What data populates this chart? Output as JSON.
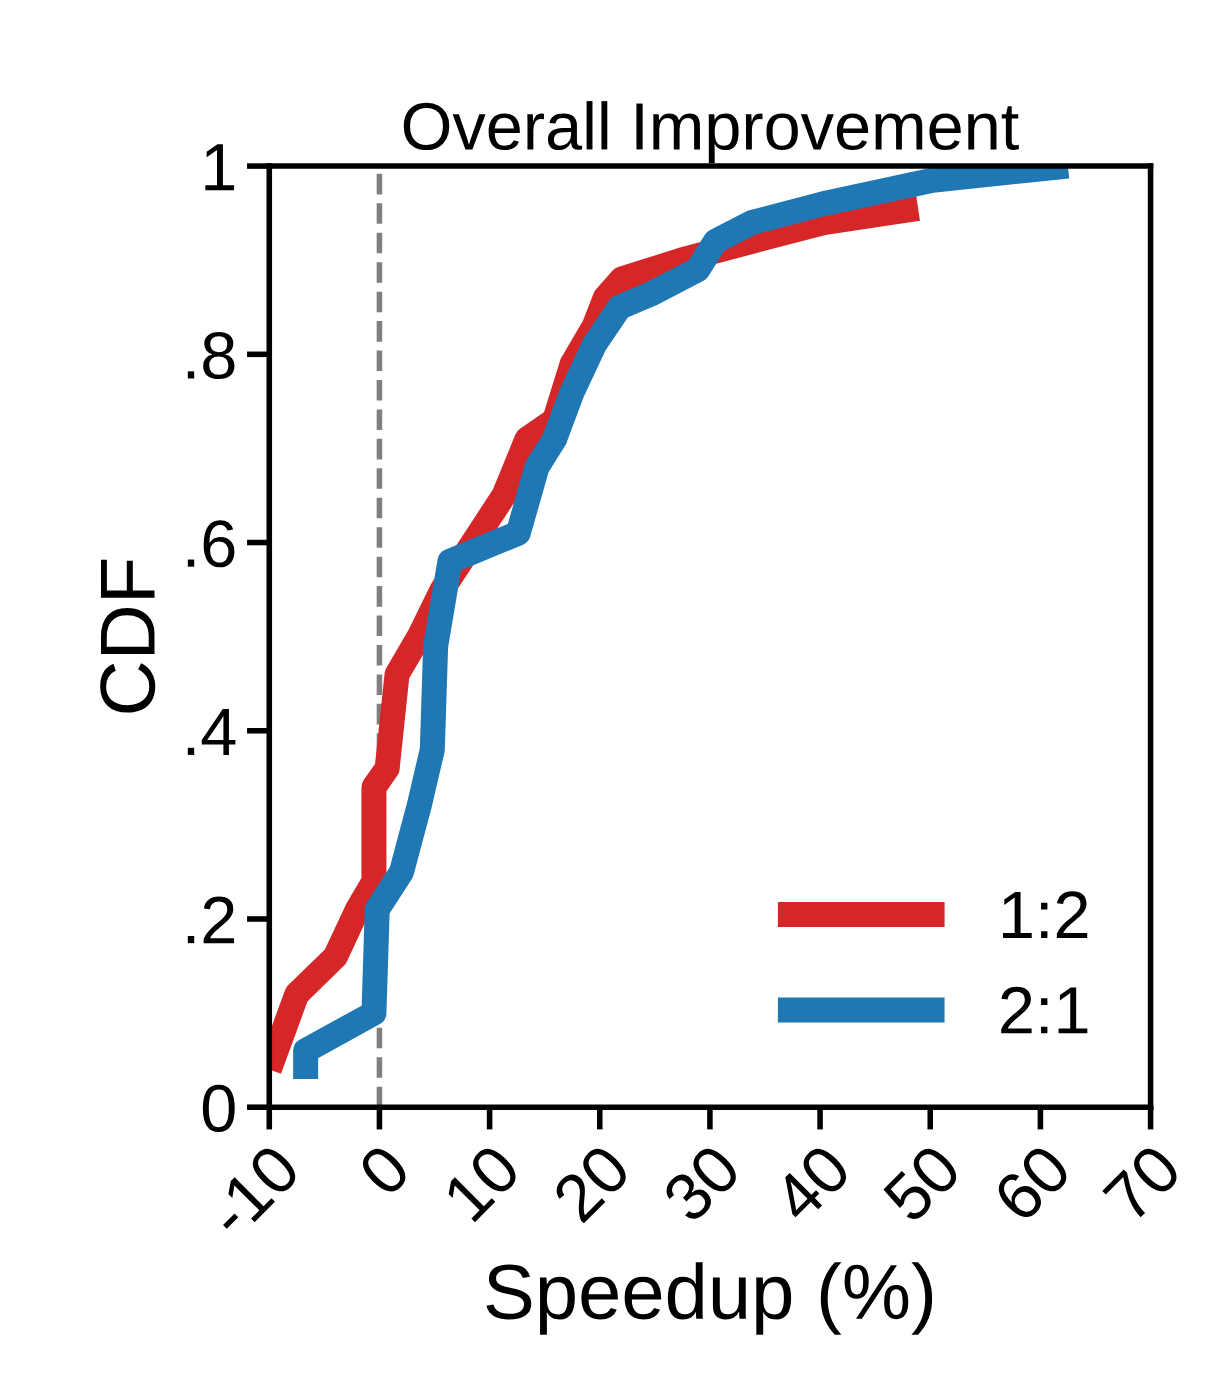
{
  "chart_data": {
    "type": "line",
    "title": "Overall Improvement",
    "xlabel": "Speedup (%)",
    "ylabel": "CDF",
    "xlim": [
      -10,
      70
    ],
    "xticks": [
      -10,
      0,
      10,
      20,
      30,
      40,
      50,
      60,
      70
    ],
    "ylim": [
      0,
      1
    ],
    "yticks": [
      0,
      {
        "value": 0.2,
        "label": ".2"
      },
      {
        "value": 0.4,
        "label": ".4"
      },
      {
        "value": 0.6,
        "label": ".6"
      },
      {
        "value": 0.8,
        "label": ".8"
      },
      1
    ],
    "series": [
      {
        "name": "1:2",
        "color": "#d62728",
        "x": [
          -10,
          -7.5,
          -4,
          -2,
          -0.5,
          -0.5,
          0.7,
          1.6,
          3.6,
          5.7,
          8.5,
          11.3,
          13.4,
          15.9,
          17.5,
          19.5,
          20.5,
          22,
          27.4,
          33.8,
          40.3,
          48.9
        ],
        "values": [
          0.04,
          0.12,
          0.16,
          0.21,
          0.24,
          0.34,
          0.36,
          0.46,
          0.5,
          0.55,
          0.6,
          0.65,
          0.71,
          0.73,
          0.79,
          0.83,
          0.86,
          0.88,
          0.9,
          0.92,
          0.94,
          0.955
        ]
      },
      {
        "name": "2:1",
        "color": "#1f77b4",
        "x": [
          -6.7,
          -6.7,
          -0.5,
          -0.2,
          2,
          3.6,
          4.8,
          5.1,
          6.4,
          12.6,
          14.3,
          15.9,
          17.5,
          19.5,
          21.8,
          24.8,
          28.9,
          30.5,
          33.8,
          40.3,
          50.2,
          62.5
        ],
        "values": [
          0.03,
          0.06,
          0.1,
          0.21,
          0.25,
          0.32,
          0.38,
          0.49,
          0.58,
          0.61,
          0.68,
          0.71,
          0.76,
          0.81,
          0.85,
          0.865,
          0.89,
          0.92,
          0.94,
          0.96,
          0.985,
          1.0
        ]
      }
    ],
    "ref_lines": [
      {
        "axis": "x",
        "value": 0,
        "color": "#808080",
        "line_style": "dashed"
      }
    ],
    "legend": "bottom right",
    "grid": false,
    "marker": "none",
    "line_style": "solid"
  }
}
